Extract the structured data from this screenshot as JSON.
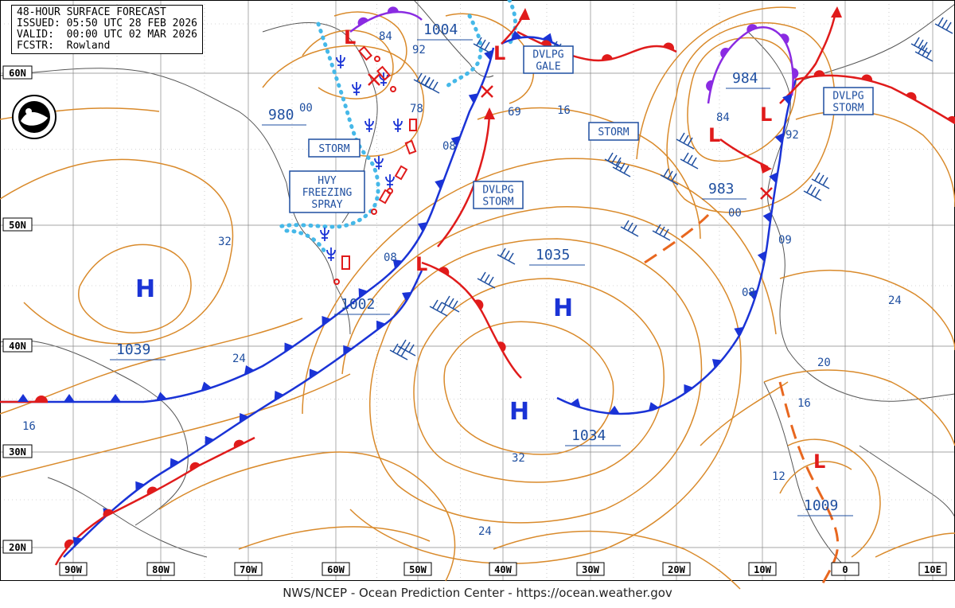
{
  "header": {
    "line1": "48-HOUR SURFACE FORECAST",
    "line2": "ISSUED: 05:50 UTC 28 FEB 2026",
    "line3": "VALID:  00:00 UTC 02 MAR 2026",
    "line4": "FCSTR:  Rowland"
  },
  "footer": "NWS/NCEP - Ocean Prediction Center - https://ocean.weather.gov",
  "colors": {
    "isobar": "#d98a2b",
    "cold_front": "#1a33d6",
    "warm_front": "#e01b1b",
    "occluded_front": "#8a2be2",
    "ice_edge": "#45b8e8",
    "label_text": "#1f4fa0",
    "grid_line": "#000000"
  },
  "longitude_labels": [
    "90W",
    "80W",
    "70W",
    "60W",
    "50W",
    "40W",
    "30W",
    "20W",
    "10W",
    "0",
    "10E"
  ],
  "latitude_labels": [
    "60N",
    "50N",
    "40N",
    "30N",
    "20N"
  ],
  "pressure_centers": [
    {
      "type": "H",
      "value": "1039"
    },
    {
      "type": "H",
      "value": "1035"
    },
    {
      "type": "H",
      "value": "1034"
    },
    {
      "type": "L",
      "value": "1002"
    },
    {
      "type": "L",
      "value": "1004"
    },
    {
      "type": "L",
      "value": "980"
    },
    {
      "type": "L",
      "value": "984"
    },
    {
      "type": "L",
      "value": "983"
    },
    {
      "type": "L",
      "value": "1009"
    }
  ],
  "warning_boxes": [
    {
      "text": "STORM"
    },
    {
      "text": "HVY FREEZING SPRAY"
    },
    {
      "text": "DVLPG GALE"
    },
    {
      "text": "DVLPG STORM"
    },
    {
      "text": "STORM"
    },
    {
      "text": "DVLPG STORM"
    }
  ],
  "isobar_labels": [
    "84",
    "92",
    "00",
    "78",
    "69",
    "16",
    "08",
    "08",
    "32",
    "24",
    "16",
    "32",
    "24",
    "12",
    "16",
    "20",
    "24",
    "08",
    "09",
    "00",
    "84",
    "92"
  ],
  "symbols": {
    "high": "H",
    "low": "L"
  }
}
